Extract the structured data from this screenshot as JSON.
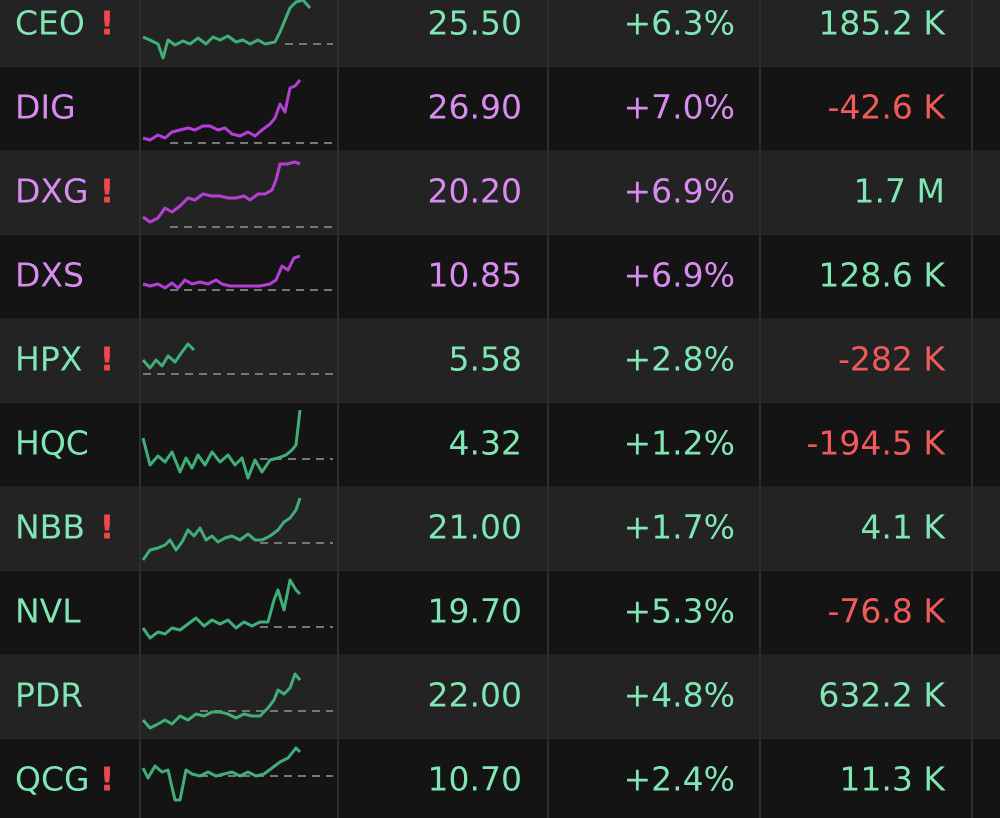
{
  "rows": [
    {
      "ticker": "CEO",
      "alert": "!",
      "price": "25.50",
      "change": "+6.3%",
      "volume": "185.2 K",
      "color": "#7fe6b4",
      "volume_color": "#7fe6b4"
    },
    {
      "ticker": "DIG",
      "price": "26.90",
      "change": "+7.0%",
      "volume": "-42.6 K",
      "color": "#d98cf0",
      "volume_color": "#f05a5a"
    },
    {
      "ticker": "DXG",
      "alert": "!",
      "price": "20.20",
      "change": "+6.9%",
      "volume": "1.7 M",
      "color": "#d98cf0",
      "volume_color": "#7fe6b4"
    },
    {
      "ticker": "DXS",
      "price": "10.85",
      "change": "+6.9%",
      "volume": "128.6 K",
      "color": "#d98cf0",
      "volume_color": "#7fe6b4"
    },
    {
      "ticker": "HPX",
      "alert": "!",
      "price": "5.58",
      "change": "+2.8%",
      "volume": "-282 K",
      "color": "#7fe6b4",
      "volume_color": "#f05a5a"
    },
    {
      "ticker": "HQC",
      "price": "4.32",
      "change": "+1.2%",
      "volume": "-194.5 K",
      "color": "#7fe6b4",
      "volume_color": "#f05a5a"
    },
    {
      "ticker": "NBB",
      "alert": "!",
      "price": "21.00",
      "change": "+1.7%",
      "volume": "4.1 K",
      "color": "#7fe6b4",
      "volume_color": "#7fe6b4"
    },
    {
      "ticker": "NVL",
      "price": "19.70",
      "change": "+5.3%",
      "volume": "-76.8 K",
      "color": "#7fe6b4",
      "volume_color": "#f05a5a"
    },
    {
      "ticker": "PDR",
      "price": "22.00",
      "change": "+4.8%",
      "volume": "632.2 K",
      "color": "#7fe6b4",
      "volume_color": "#7fe6b4"
    },
    {
      "ticker": "QCG",
      "alert": "!",
      "price": "10.70",
      "change": "+2.4%",
      "volume": "11.3 K",
      "color": "#7fe6b4",
      "volume_color": "#7fe6b4"
    }
  ]
}
